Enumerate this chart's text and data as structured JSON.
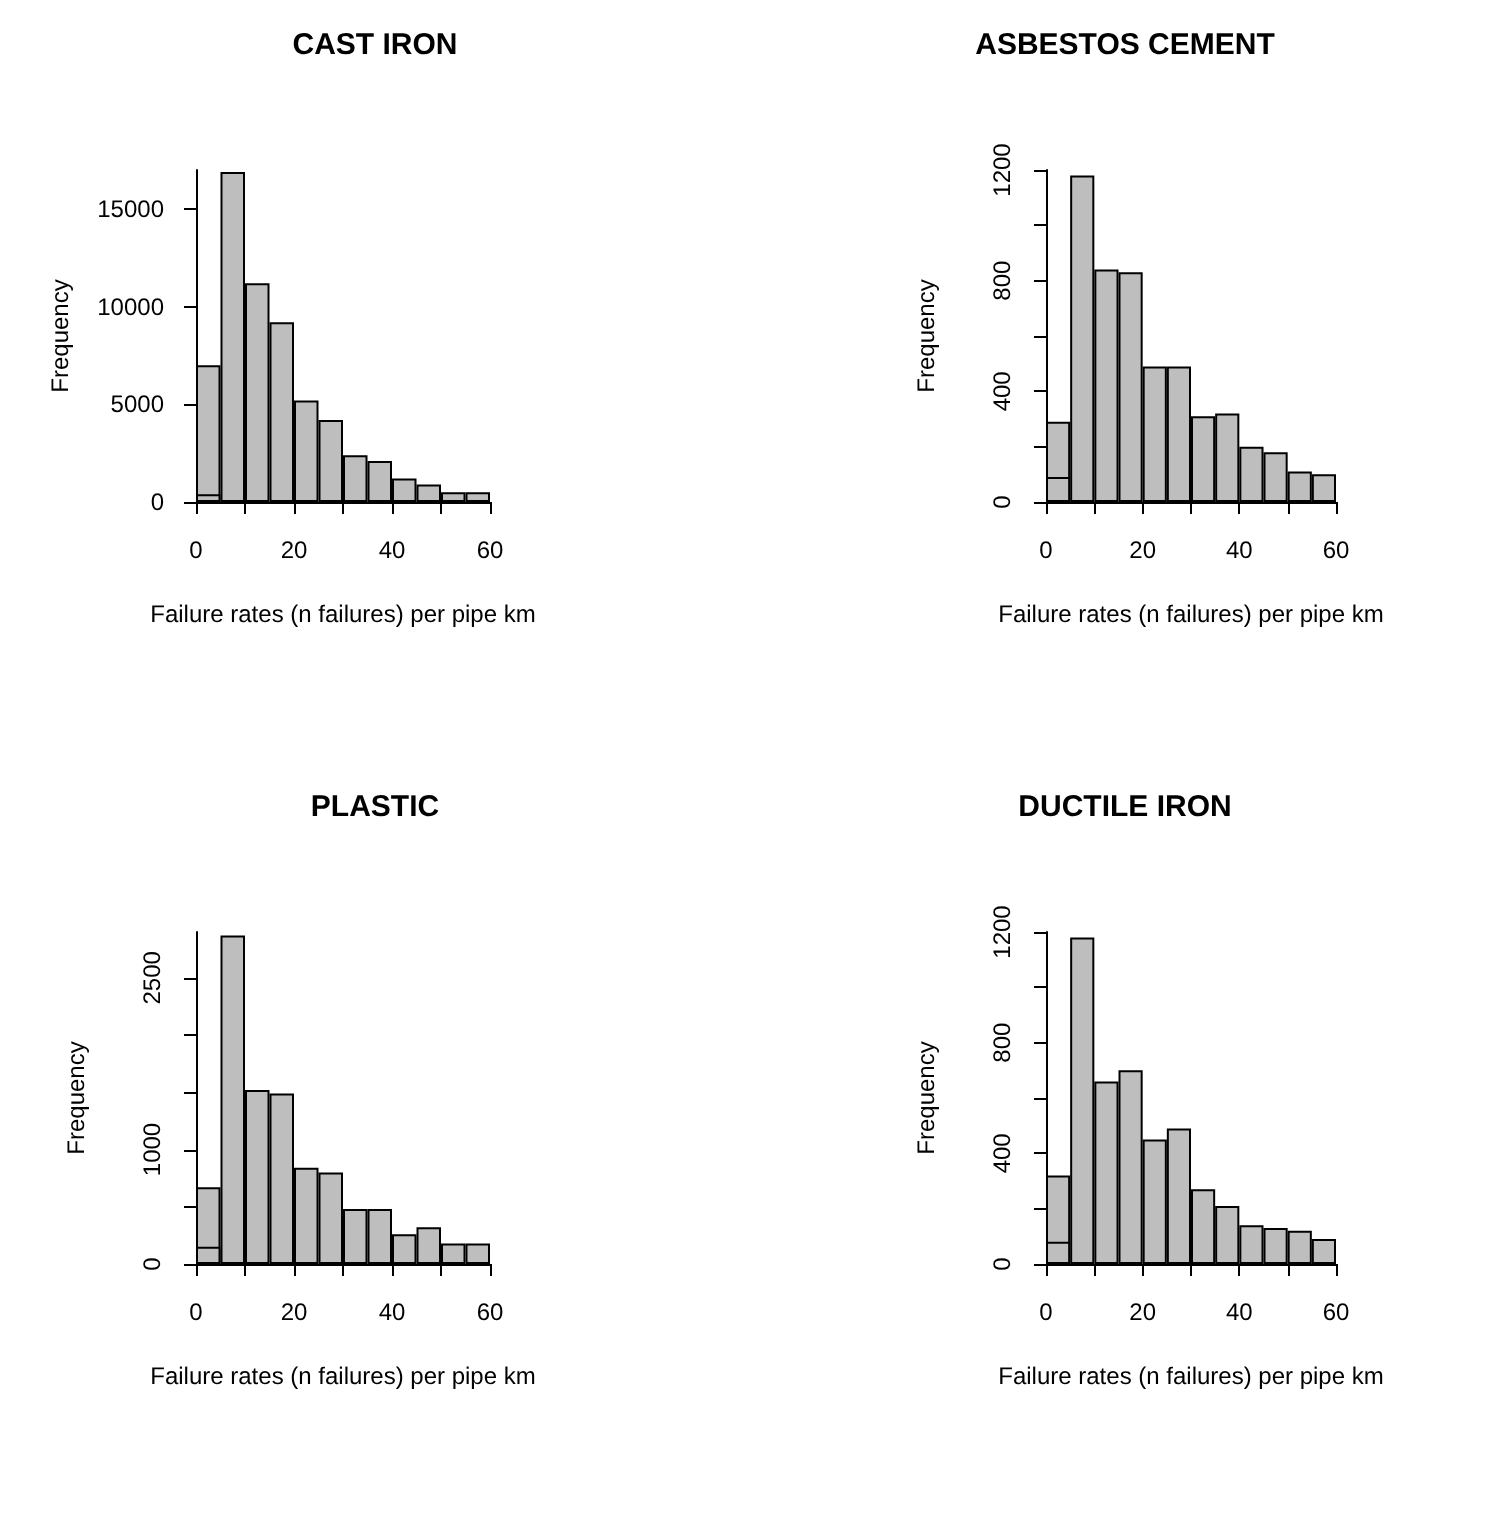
{
  "chart_data": [
    {
      "type": "histogram",
      "title": "CAST IRON",
      "xlabel": "Failure rates (n failures) per pipe km",
      "ylabel": "Frequency",
      "bins": [
        0,
        5,
        10,
        15,
        20,
        25,
        30,
        35,
        40,
        45,
        50,
        55,
        60
      ],
      "series": [
        {
          "color": "#bebebe",
          "values": [
            7000,
            16900,
            11200,
            9200,
            5200,
            4200,
            2400,
            2100,
            1200,
            900,
            500,
            500
          ]
        },
        {
          "color": "#bebebe",
          "values": [
            400,
            null,
            null,
            null,
            null,
            null,
            null,
            null,
            null,
            null,
            null,
            null
          ]
        }
      ],
      "xlim": [
        0,
        60
      ],
      "xticks": [
        0,
        {
          "value": 10,
          "label": null
        },
        20,
        {
          "value": 30,
          "label": null
        },
        40,
        {
          "value": 50,
          "label": null
        },
        60
      ],
      "ylim": [
        0,
        17000
      ],
      "yticks": [
        0,
        5000,
        10000,
        15000
      ],
      "grid": false
    },
    {
      "type": "histogram",
      "title": "ASBESTOS CEMENT",
      "xlabel": "Failure rates (n failures) per pipe km",
      "ylabel": "Frequency",
      "bins": [
        0,
        5,
        10,
        15,
        20,
        25,
        30,
        35,
        40,
        45,
        50,
        55,
        60
      ],
      "series": [
        {
          "color": "#bebebe",
          "values": [
            290,
            1180,
            840,
            830,
            490,
            490,
            310,
            320,
            200,
            180,
            110,
            100
          ]
        },
        {
          "color": "#bebebe",
          "values": [
            90,
            null,
            null,
            null,
            null,
            null,
            null,
            null,
            null,
            null,
            null,
            null
          ]
        }
      ],
      "xlim": [
        0,
        60
      ],
      "xticks": [
        0,
        {
          "value": 10,
          "label": null
        },
        20,
        {
          "value": 30,
          "label": null
        },
        40,
        {
          "value": 50,
          "label": null
        },
        60
      ],
      "ylim": [
        0,
        1200
      ],
      "yticks": [
        0,
        {
          "value": 200,
          "label": null
        },
        400,
        {
          "value": 600,
          "label": null
        },
        800,
        {
          "value": 1000,
          "label": null
        },
        1200
      ],
      "grid": false
    },
    {
      "type": "histogram",
      "title": "PLASTIC",
      "xlabel": "Failure rates (n failures) per pipe km",
      "ylabel": "Frequency",
      "bins": [
        0,
        5,
        10,
        15,
        20,
        25,
        30,
        35,
        40,
        45,
        50,
        55,
        60
      ],
      "series": [
        {
          "color": "#bebebe",
          "values": [
            670,
            2870,
            1520,
            1490,
            840,
            800,
            480,
            480,
            260,
            320,
            180,
            180
          ]
        },
        {
          "color": "#bebebe",
          "values": [
            150,
            null,
            null,
            null,
            null,
            null,
            null,
            null,
            null,
            null,
            null,
            null
          ]
        }
      ],
      "xlim": [
        0,
        60
      ],
      "xticks": [
        0,
        {
          "value": 10,
          "label": null
        },
        20,
        {
          "value": 30,
          "label": null
        },
        40,
        {
          "value": 50,
          "label": null
        },
        60
      ],
      "ylim": [
        0,
        2900
      ],
      "yticks": [
        0,
        {
          "value": 500,
          "label": null
        },
        1000,
        {
          "value": 1500,
          "label": null
        },
        {
          "value": 2000,
          "label": null
        },
        2500
      ],
      "grid": false
    },
    {
      "type": "histogram",
      "title": "DUCTILE IRON",
      "xlabel": "Failure rates (n failures) per pipe km",
      "ylabel": "Frequency",
      "bins": [
        0,
        5,
        10,
        15,
        20,
        25,
        30,
        35,
        40,
        45,
        50,
        55,
        60
      ],
      "series": [
        {
          "color": "#bebebe",
          "values": [
            320,
            1180,
            660,
            700,
            450,
            490,
            270,
            210,
            140,
            130,
            120,
            90
          ]
        },
        {
          "color": "#bebebe",
          "values": [
            80,
            null,
            null,
            null,
            null,
            null,
            null,
            null,
            null,
            null,
            null,
            null
          ]
        }
      ],
      "xlim": [
        0,
        60
      ],
      "xticks": [
        0,
        {
          "value": 10,
          "label": null
        },
        20,
        {
          "value": 30,
          "label": null
        },
        40,
        {
          "value": 50,
          "label": null
        },
        60
      ],
      "ylim": [
        0,
        1200
      ],
      "yticks": [
        0,
        {
          "value": 200,
          "label": null
        },
        400,
        {
          "value": 600,
          "label": null
        },
        800,
        {
          "value": 1000,
          "label": null
        },
        1200
      ],
      "grid": false
    }
  ]
}
